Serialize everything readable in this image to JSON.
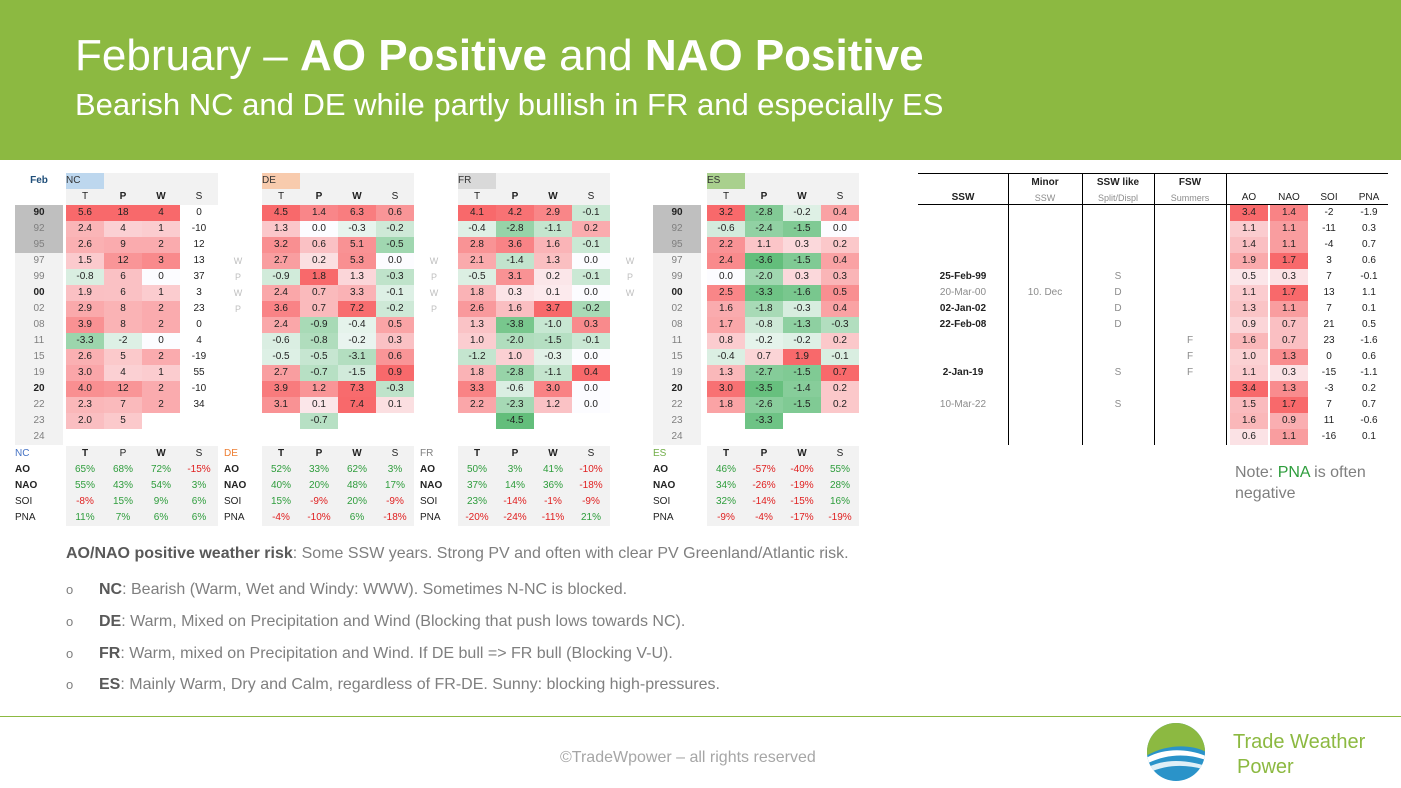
{
  "header": {
    "title_part1": "February – ",
    "title_bold1": "AO Positive",
    "title_part2": " and ",
    "title_bold2": "NAO Positive",
    "subtitle": "Bearish NC and DE while partly bullish in FR and especially ES"
  },
  "years": [
    "90",
    "92",
    "95",
    "97",
    "99",
    "00",
    "02",
    "08",
    "11",
    "15",
    "19",
    "20",
    "22",
    "23",
    "24"
  ],
  "year_bold": [
    "90",
    "00",
    "20"
  ],
  "month_label": "Feb",
  "cols": [
    "T",
    "P",
    "W",
    "S"
  ],
  "regions": [
    {
      "name": "NC",
      "head_color": "#bdd7ee",
      "name_color": "#333333",
      "values": [
        [
          "5.6",
          "18",
          "4",
          "0"
        ],
        [
          "2.4",
          "4",
          "1",
          "-10"
        ],
        [
          "2.6",
          "9",
          "2",
          "12"
        ],
        [
          "1.5",
          "12",
          "3",
          "13"
        ],
        [
          "-0.8",
          "6",
          "0",
          "37"
        ],
        [
          "1.9",
          "6",
          "1",
          "3"
        ],
        [
          "2.9",
          "8",
          "2",
          "23"
        ],
        [
          "3.9",
          "8",
          "2",
          "0"
        ],
        [
          "-3.3",
          "-2",
          "0",
          "4"
        ],
        [
          "2.6",
          "5",
          "2",
          "-19"
        ],
        [
          "3.0",
          "4",
          "1",
          "55"
        ],
        [
          "4.0",
          "12",
          "2",
          "-10"
        ],
        [
          "2.3",
          "7",
          "2",
          "34"
        ],
        [
          "2.0",
          "5",
          "",
          ""
        ],
        [
          "",
          "",
          "",
          ""
        ]
      ],
      "side": [
        "",
        "",
        "",
        "W",
        "P",
        "W",
        "P",
        "",
        "",
        "",
        "",
        "",
        "",
        "",
        ""
      ]
    },
    {
      "name": "DE",
      "head_color": "#f8cbad",
      "name_color": "#333333",
      "values": [
        [
          "4.5",
          "1.4",
          "6.3",
          "0.6"
        ],
        [
          "1.3",
          "0.0",
          "-0.3",
          "-0.2"
        ],
        [
          "3.2",
          "0.6",
          "5.1",
          "-0.5"
        ],
        [
          "2.7",
          "0.2",
          "5.3",
          "0.0"
        ],
        [
          "-0.9",
          "1.8",
          "1.3",
          "-0.3"
        ],
        [
          "2.4",
          "0.7",
          "3.3",
          "-0.1"
        ],
        [
          "3.6",
          "0.7",
          "7.2",
          "-0.2"
        ],
        [
          "2.4",
          "-0.9",
          "-0.4",
          "0.5"
        ],
        [
          "-0.6",
          "-0.8",
          "-0.2",
          "0.3"
        ],
        [
          "-0.5",
          "-0.5",
          "-3.1",
          "0.6"
        ],
        [
          "2.7",
          "-0.7",
          "-1.5",
          "0.9"
        ],
        [
          "3.9",
          "1.2",
          "7.3",
          "-0.3"
        ],
        [
          "3.1",
          "0.1",
          "7.4",
          "0.1"
        ],
        [
          "",
          "-0.7",
          "",
          ""
        ],
        [
          "",
          "",
          "",
          ""
        ]
      ],
      "side": [
        "",
        "",
        "",
        "W",
        "P",
        "W",
        "P",
        "",
        "",
        "",
        "",
        "",
        "",
        "",
        ""
      ]
    },
    {
      "name": "FR",
      "head_color": "#d9d9d9",
      "name_color": "#333333",
      "values": [
        [
          "4.1",
          "4.2",
          "2.9",
          "-0.1"
        ],
        [
          "-0.4",
          "-2.8",
          "-1.1",
          "0.2"
        ],
        [
          "2.8",
          "3.6",
          "1.6",
          "-0.1"
        ],
        [
          "2.1",
          "-1.4",
          "1.3",
          "0.0"
        ],
        [
          "-0.5",
          "3.1",
          "0.2",
          "-0.1"
        ],
        [
          "1.8",
          "0.3",
          "0.1",
          "0.0"
        ],
        [
          "2.6",
          "1.6",
          "3.7",
          "-0.2"
        ],
        [
          "1.3",
          "-3.8",
          "-1.0",
          "0.3"
        ],
        [
          "1.0",
          "-2.0",
          "-1.5",
          "-0.1"
        ],
        [
          "-1.2",
          "1.0",
          "-0.3",
          "0.0"
        ],
        [
          "1.8",
          "-2.8",
          "-1.1",
          "0.4"
        ],
        [
          "3.3",
          "-0.6",
          "3.0",
          "0.0"
        ],
        [
          "2.2",
          "-2.3",
          "1.2",
          "0.0"
        ],
        [
          "",
          "-4.5",
          "",
          ""
        ],
        [
          "",
          "",
          "",
          ""
        ]
      ],
      "side": [
        "",
        "",
        "",
        "W",
        "P",
        "W",
        "",
        "",
        "",
        "",
        "",
        "",
        "",
        "",
        ""
      ]
    },
    {
      "name": "ES",
      "head_color": "#a9d08e",
      "name_color": "#333333",
      "values": [
        [
          "3.2",
          "-2.8",
          "-0.2",
          "0.4"
        ],
        [
          "-0.6",
          "-2.4",
          "-1.5",
          "0.0"
        ],
        [
          "2.2",
          "1.1",
          "0.3",
          "0.2"
        ],
        [
          "2.4",
          "-3.6",
          "-1.5",
          "0.4"
        ],
        [
          "0.0",
          "-2.0",
          "0.3",
          "0.3"
        ],
        [
          "2.5",
          "-3.3",
          "-1.6",
          "0.5"
        ],
        [
          "1.6",
          "-1.8",
          "-0.3",
          "0.4"
        ],
        [
          "1.7",
          "-0.8",
          "-1.3",
          "-0.3"
        ],
        [
          "0.8",
          "-0.2",
          "-0.2",
          "0.2"
        ],
        [
          "-0.4",
          "0.7",
          "1.9",
          "-0.1"
        ],
        [
          "1.3",
          "-2.7",
          "-1.5",
          "0.7"
        ],
        [
          "3.0",
          "-3.5",
          "-1.4",
          "0.2"
        ],
        [
          "1.8",
          "-2.6",
          "-1.5",
          "0.2"
        ],
        [
          "",
          "-3.3",
          "",
          ""
        ],
        [
          "",
          "",
          "",
          ""
        ]
      ],
      "side": []
    }
  ],
  "corr": {
    "labels": [
      "AO",
      "NAO",
      "SOI",
      "PNA"
    ],
    "label_bold": [
      "AO",
      "NAO"
    ],
    "regions": [
      {
        "name": "NC",
        "name_color": "#4472c4",
        "values": [
          [
            "65%",
            "68%",
            "72%",
            "-15%"
          ],
          [
            "55%",
            "43%",
            "54%",
            "3%"
          ],
          [
            "-8%",
            "15%",
            "9%",
            "6%"
          ],
          [
            "11%",
            "7%",
            "6%",
            "6%"
          ]
        ]
      },
      {
        "name": "DE",
        "name_color": "#ed7d31",
        "values": [
          [
            "52%",
            "33%",
            "62%",
            "3%"
          ],
          [
            "40%",
            "20%",
            "48%",
            "17%"
          ],
          [
            "15%",
            "-9%",
            "20%",
            "-9%"
          ],
          [
            "-4%",
            "-10%",
            "6%",
            "-18%"
          ]
        ]
      },
      {
        "name": "FR",
        "name_color": "#7f7f7f",
        "values": [
          [
            "50%",
            "3%",
            "41%",
            "-10%"
          ],
          [
            "37%",
            "14%",
            "36%",
            "-18%"
          ],
          [
            "23%",
            "-14%",
            "-1%",
            "-9%"
          ],
          [
            "-20%",
            "-24%",
            "-11%",
            "21%"
          ]
        ]
      },
      {
        "name": "ES",
        "name_color": "#70ad47",
        "values": [
          [
            "46%",
            "-57%",
            "-40%",
            "55%"
          ],
          [
            "34%",
            "-26%",
            "-19%",
            "28%"
          ],
          [
            "32%",
            "-14%",
            "-15%",
            "16%"
          ],
          [
            "-9%",
            "-4%",
            "-17%",
            "-19%"
          ]
        ]
      }
    ]
  },
  "ssw_table": {
    "headers_top": [
      "",
      "Minor",
      "SSW like",
      "FSW"
    ],
    "headers_bottom": [
      "SSW",
      "SSW",
      "Split/Displ",
      "Summers"
    ],
    "idx_headers": [
      "AO",
      "NAO",
      "SOI",
      "PNA"
    ],
    "rows": [
      {
        "ssw": "",
        "minor": "",
        "split": "",
        "fsw": "",
        "idx": [
          "3.4",
          "1.4",
          "-2",
          "-1.9"
        ]
      },
      {
        "ssw": "",
        "minor": "",
        "split": "",
        "fsw": "",
        "idx": [
          "1.1",
          "1.1",
          "-11",
          "0.3"
        ]
      },
      {
        "ssw": "",
        "minor": "",
        "split": "",
        "fsw": "",
        "idx": [
          "1.4",
          "1.1",
          "-4",
          "0.7"
        ]
      },
      {
        "ssw": "",
        "minor": "",
        "split": "",
        "fsw": "",
        "idx": [
          "1.9",
          "1.7",
          "3",
          "0.6"
        ]
      },
      {
        "ssw": "25-Feb-99",
        "minor": "",
        "split": "S",
        "fsw": "",
        "idx": [
          "0.5",
          "0.3",
          "7",
          "-0.1"
        ]
      },
      {
        "ssw": "20-Mar-00",
        "minor": "10. Dec",
        "split": "D",
        "fsw": "",
        "idx": [
          "1.1",
          "1.7",
          "13",
          "1.1"
        ]
      },
      {
        "ssw": "02-Jan-02",
        "minor": "",
        "split": "D",
        "fsw": "",
        "idx": [
          "1.3",
          "1.1",
          "7",
          "0.1"
        ]
      },
      {
        "ssw": "22-Feb-08",
        "minor": "",
        "split": "D",
        "fsw": "",
        "idx": [
          "0.9",
          "0.7",
          "21",
          "0.5"
        ]
      },
      {
        "ssw": "",
        "minor": "",
        "split": "",
        "fsw": "F",
        "idx": [
          "1.6",
          "0.7",
          "23",
          "-1.6"
        ]
      },
      {
        "ssw": "",
        "minor": "",
        "split": "",
        "fsw": "F",
        "idx": [
          "1.0",
          "1.3",
          "0",
          "0.6"
        ]
      },
      {
        "ssw": "2-Jan-19",
        "minor": "",
        "split": "S",
        "fsw": "F",
        "idx": [
          "1.1",
          "0.3",
          "-15",
          "-1.1"
        ]
      },
      {
        "ssw": "",
        "minor": "",
        "split": "",
        "fsw": "",
        "idx": [
          "3.4",
          "1.3",
          "-3",
          "0.2"
        ]
      },
      {
        "ssw": "10-Mar-22",
        "minor": "",
        "split": "S",
        "fsw": "",
        "idx": [
          "1.5",
          "1.7",
          "7",
          "0.7"
        ]
      },
      {
        "ssw": "",
        "minor": "",
        "split": "",
        "fsw": "",
        "idx": [
          "1.6",
          "0.9",
          "11",
          "-0.6"
        ]
      },
      {
        "ssw": "",
        "minor": "",
        "split": "",
        "fsw": "",
        "idx": [
          "0.6",
          "1.1",
          "-16",
          "0.1"
        ]
      }
    ],
    "ssw_bold": [
      "25-Feb-99",
      "02-Jan-02",
      "22-Feb-08",
      "2-Jan-19"
    ]
  },
  "note": {
    "prefix": "Note: ",
    "highlight": "PNA",
    "suffix": " is often negative"
  },
  "body": {
    "heading_bold": "AO/NAO positive weather risk",
    "heading_rest": ": Some SSW years. Strong PV and often with clear PV Greenland/Atlantic risk.",
    "bullet_symbol": "o",
    "bullets": [
      {
        "bold": "NC",
        "text": ": Bearish (Warm, Wet and Windy: WWW). Sometimes N-NC is blocked."
      },
      {
        "bold": "DE",
        "text": ": Warm, Mixed on Precipitation and Wind (Blocking that push lows towards NC)."
      },
      {
        "bold": "FR",
        "text": ": Warm, mixed on Precipitation and Wind. If DE bull => FR bull (Blocking V-U)."
      },
      {
        "bold": "ES",
        "text": ": Mainly Warm, Dry and Calm, regardless of FR-DE. Sunny: blocking high-pressures."
      }
    ]
  },
  "footer": "©TradeWpower – all rights reserved",
  "brand": {
    "line1": "Trade Weather",
    "line2": "Power"
  },
  "colors": {
    "brand_green": "#8cb941",
    "heat_red": "#f8696b",
    "heat_green": "#63be7b"
  }
}
